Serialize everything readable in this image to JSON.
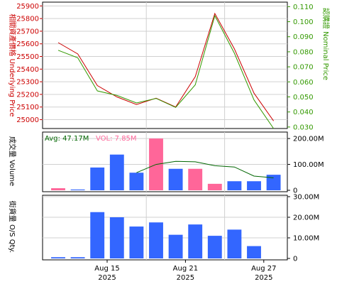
{
  "chart_data": [
    {
      "type": "line",
      "panel": "price",
      "left_axis_label": "相關資產價格 Underlying Price",
      "right_axis_label": "認購證 Nominal Price",
      "left_ticks": [
        25900,
        25800,
        25700,
        25600,
        25500,
        25400,
        25300,
        25200,
        25100,
        25000
      ],
      "right_ticks": [
        "0.110",
        "0.100",
        "0.090",
        "0.080",
        "0.070",
        "0.060",
        "0.050",
        "0.040",
        "0.030"
      ],
      "left_ylim": [
        24930,
        25930
      ],
      "right_ylim": [
        0.029,
        0.113
      ],
      "grid": true,
      "series": [
        {
          "axis": "left",
          "color": "#cc0000",
          "values": [
            25610,
            25520,
            25270,
            25180,
            25120,
            25170,
            25100,
            25340,
            25840,
            25560,
            25210,
            24990
          ]
        },
        {
          "axis": "right",
          "color": "#339900",
          "values": [
            0.081,
            0.076,
            0.054,
            0.051,
            0.046,
            0.049,
            0.043,
            0.058,
            0.104,
            0.079,
            0.048,
            0.029
          ]
        }
      ]
    },
    {
      "type": "bar",
      "panel": "volume",
      "left_axis_label": "成交量 Volume",
      "legend": {
        "avg_label": "Avg: 47.17M",
        "vol_label": "VOL: 7.85M"
      },
      "right_ticks": [
        "200.00M",
        "100.00M",
        "0"
      ],
      "ylim": [
        0,
        225
      ],
      "unit": "M",
      "grid": true,
      "bars": [
        {
          "value": 8,
          "color": "#ff6699"
        },
        {
          "value": 3,
          "color": "#3366ff"
        },
        {
          "value": 88,
          "color": "#3366ff"
        },
        {
          "value": 138,
          "color": "#3366ff"
        },
        {
          "value": 68,
          "color": "#3366ff"
        },
        {
          "value": 200,
          "color": "#ff6699"
        },
        {
          "value": 83,
          "color": "#3366ff"
        },
        {
          "value": 83,
          "color": "#ff6699"
        },
        {
          "value": 25,
          "color": "#ff6699"
        },
        {
          "value": 35,
          "color": "#3366ff"
        },
        {
          "value": 35,
          "color": "#3366ff"
        },
        {
          "value": 60,
          "color": "#3366ff"
        }
      ],
      "avg_line": {
        "color": "#006600",
        "start_index": 4,
        "values": [
          68,
          100,
          112,
          110,
          95,
          90,
          55,
          48
        ]
      }
    },
    {
      "type": "bar",
      "panel": "os_qty",
      "left_axis_label": "街貨量 O/S Qty.",
      "right_ticks": [
        "30.00M",
        "20.00M",
        "10.00M",
        "0"
      ],
      "ylim": [
        0,
        30
      ],
      "unit": "M",
      "grid": true,
      "color": "#3366ff",
      "values": [
        0.6,
        0.6,
        22.5,
        20,
        15.5,
        17.5,
        11.5,
        16.5,
        11,
        14,
        6,
        null
      ],
      "x_labels": [
        {
          "index": 2.5,
          "date": "Aug 15",
          "year": "2025"
        },
        {
          "index": 6.5,
          "date": "Aug 21",
          "year": "2025"
        },
        {
          "index": 10.5,
          "date": "Aug 27",
          "year": "2025"
        }
      ]
    }
  ]
}
